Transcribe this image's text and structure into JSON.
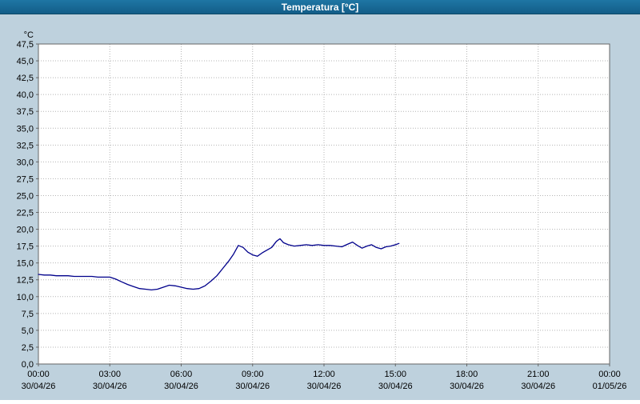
{
  "window": {
    "title": "Temperatura [°C]"
  },
  "colors": {
    "background": "#bed1dd",
    "titlebar": "#135d88",
    "plot_bg": "#ffffff",
    "grid": "#b4b4b4",
    "axis": "#666666",
    "text": "#000000",
    "line": "#00008b"
  },
  "chart_data": {
    "type": "line",
    "title": "Temperatura [°C]",
    "xlabel": "",
    "ylabel": "°C",
    "ylim": [
      0,
      47.5
    ],
    "ytick_step": 2.5,
    "decimal_separator": ",",
    "grid": true,
    "legend_position": "none",
    "xlim_hours": [
      0,
      24
    ],
    "x_ticks": [
      {
        "hour": 0,
        "time": "00:00",
        "date": "30/04/26"
      },
      {
        "hour": 3,
        "time": "03:00",
        "date": "30/04/26"
      },
      {
        "hour": 6,
        "time": "06:00",
        "date": "30/04/26"
      },
      {
        "hour": 9,
        "time": "09:00",
        "date": "30/04/26"
      },
      {
        "hour": 12,
        "time": "12:00",
        "date": "30/04/26"
      },
      {
        "hour": 15,
        "time": "15:00",
        "date": "30/04/26"
      },
      {
        "hour": 18,
        "time": "18:00",
        "date": "30/04/26"
      },
      {
        "hour": 21,
        "time": "21:00",
        "date": "30/04/26"
      },
      {
        "hour": 24,
        "time": "00:00",
        "date": "01/05/26"
      }
    ],
    "series": [
      {
        "name": "Temperatura",
        "color": "#00008b",
        "points": [
          [
            0.0,
            13.3
          ],
          [
            0.25,
            13.2
          ],
          [
            0.5,
            13.2
          ],
          [
            0.75,
            13.1
          ],
          [
            1.0,
            13.1
          ],
          [
            1.25,
            13.1
          ],
          [
            1.5,
            13.0
          ],
          [
            1.75,
            13.0
          ],
          [
            2.0,
            13.0
          ],
          [
            2.25,
            13.0
          ],
          [
            2.5,
            12.9
          ],
          [
            2.75,
            12.9
          ],
          [
            3.0,
            12.9
          ],
          [
            3.25,
            12.6
          ],
          [
            3.5,
            12.2
          ],
          [
            3.75,
            11.8
          ],
          [
            4.0,
            11.5
          ],
          [
            4.25,
            11.2
          ],
          [
            4.5,
            11.1
          ],
          [
            4.75,
            11.0
          ],
          [
            5.0,
            11.1
          ],
          [
            5.25,
            11.4
          ],
          [
            5.5,
            11.7
          ],
          [
            5.75,
            11.6
          ],
          [
            6.0,
            11.4
          ],
          [
            6.25,
            11.2
          ],
          [
            6.5,
            11.1
          ],
          [
            6.75,
            11.2
          ],
          [
            7.0,
            11.6
          ],
          [
            7.25,
            12.3
          ],
          [
            7.5,
            13.1
          ],
          [
            7.75,
            14.2
          ],
          [
            8.0,
            15.3
          ],
          [
            8.2,
            16.3
          ],
          [
            8.4,
            17.6
          ],
          [
            8.6,
            17.3
          ],
          [
            8.8,
            16.6
          ],
          [
            9.0,
            16.2
          ],
          [
            9.2,
            16.0
          ],
          [
            9.4,
            16.5
          ],
          [
            9.6,
            16.9
          ],
          [
            9.8,
            17.3
          ],
          [
            10.0,
            18.2
          ],
          [
            10.15,
            18.6
          ],
          [
            10.3,
            18.0
          ],
          [
            10.5,
            17.7
          ],
          [
            10.75,
            17.5
          ],
          [
            11.0,
            17.6
          ],
          [
            11.25,
            17.7
          ],
          [
            11.5,
            17.6
          ],
          [
            11.75,
            17.7
          ],
          [
            12.0,
            17.6
          ],
          [
            12.25,
            17.6
          ],
          [
            12.5,
            17.5
          ],
          [
            12.75,
            17.4
          ],
          [
            13.0,
            17.8
          ],
          [
            13.2,
            18.1
          ],
          [
            13.4,
            17.6
          ],
          [
            13.6,
            17.2
          ],
          [
            13.8,
            17.5
          ],
          [
            14.0,
            17.7
          ],
          [
            14.2,
            17.3
          ],
          [
            14.4,
            17.1
          ],
          [
            14.6,
            17.4
          ],
          [
            14.8,
            17.5
          ],
          [
            15.0,
            17.7
          ],
          [
            15.15,
            17.9
          ]
        ]
      }
    ]
  }
}
